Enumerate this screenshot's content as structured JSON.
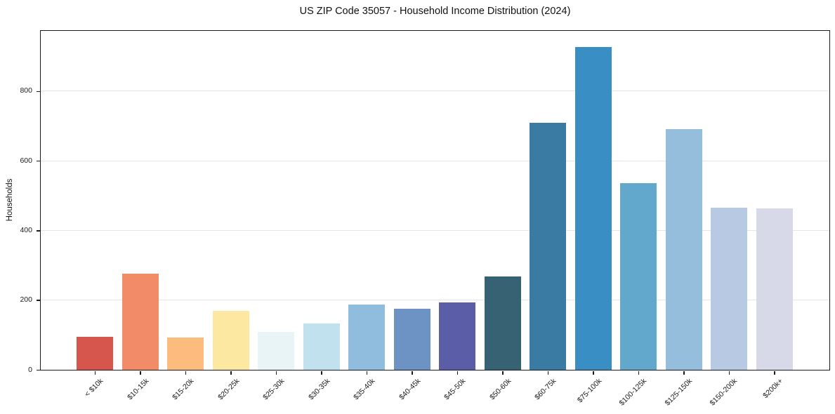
{
  "figure": {
    "background": "#ffffff",
    "text_color": "#1a1a1a",
    "spine_color": "#1a1a1a"
  },
  "chart_data": {
    "type": "bar",
    "title": "US ZIP Code 35057 - Household Income Distribution (2024)",
    "xlabel": "",
    "ylabel": "Households",
    "categories": [
      "< $10k",
      "$10-15k",
      "$15-20k",
      "$20-25k",
      "$25-30k",
      "$30-35k",
      "$35-40k",
      "$40-45k",
      "$45-50k",
      "$50-60k",
      "$60-75k",
      "$75-100k",
      "$100-125k",
      "$125-150k",
      "$150-200k",
      "$200k+"
    ],
    "values": [
      94,
      277,
      93,
      169,
      108,
      133,
      188,
      176,
      194,
      268,
      710,
      927,
      535,
      692,
      466,
      464
    ],
    "bar_colors": [
      "#d6564e",
      "#f28b68",
      "#fbbc7d",
      "#fde8a2",
      "#e8f4f5",
      "#c0e1ed",
      "#90bcdd",
      "#6c93c4",
      "#5c5da7",
      "#366273",
      "#3a7ba3",
      "#398ec3",
      "#62a7cc",
      "#94bedc",
      "#b7c9e3",
      "#d7d8e8"
    ],
    "ylim": [
      0,
      973
    ],
    "yticks": [
      0,
      200,
      400,
      600,
      800
    ],
    "grid": "horizontal",
    "grid_color": "#e5e5e5",
    "legend": "none",
    "x_tick_label_rotation_deg": 45
  }
}
